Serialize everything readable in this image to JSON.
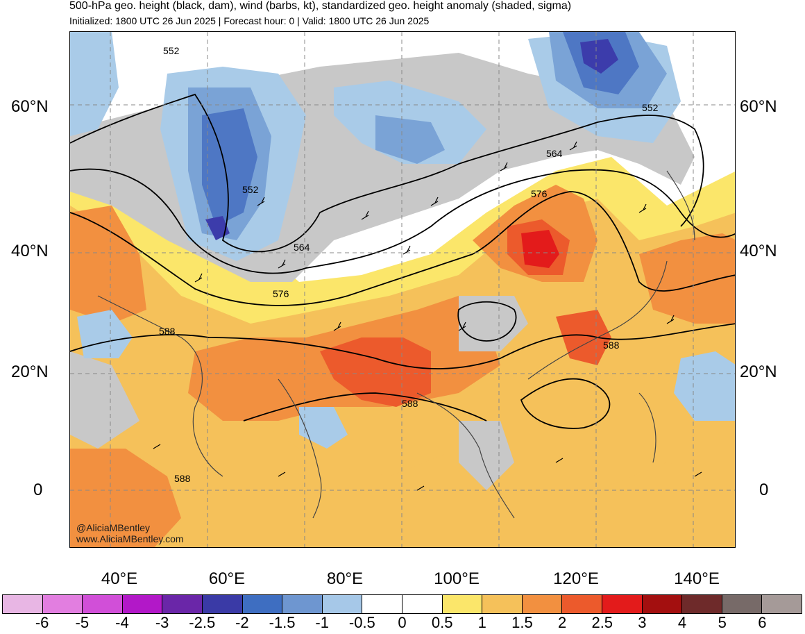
{
  "header": {
    "title": "500-hPa geo. height (black, dam), wind (barbs, kt), standardized geo. height anomaly (shaded, sigma)",
    "subtitle": "Initialized: 1800 UTC 26 Jun 2025 | Forecast hour: 0 | Valid: 1800 UTC 26 Jun 2025"
  },
  "map": {
    "lat_labels": [
      "60°N",
      "40°N",
      "20°N",
      "0"
    ],
    "lon_labels": [
      "40°E",
      "60°E",
      "80°E",
      "100°E",
      "120°E",
      "140°E"
    ],
    "contour_labels": [
      "552",
      "552",
      "552",
      "564",
      "564",
      "576",
      "576",
      "588",
      "588",
      "588",
      "588"
    ],
    "colors": {
      "land_gray": "#c8c8c8",
      "neg_05": "#a9cbe8",
      "neg_1": "#7aa3d6",
      "neg_15": "#4e77c4",
      "neg_2": "#3c3cab",
      "pos_05": "#fbe66a",
      "pos_1": "#f5c15a",
      "pos_15": "#f29040",
      "pos_2": "#ec5a2c",
      "pos_25": "#e31b1b",
      "contour": "#000000",
      "coast": "#444444"
    }
  },
  "credits": {
    "handle": "@AliciaMBentley",
    "website": "www.AliciaMBentley.com"
  },
  "colorbar": {
    "colors": [
      "#e8b6e4",
      "#e27ee0",
      "#d14fd8",
      "#b218c8",
      "#6a26a8",
      "#3a3aa6",
      "#3e6ec1",
      "#6e96d0",
      "#a6c8e8",
      "#ffffff",
      "#ffffff",
      "#fbe66a",
      "#f5c15a",
      "#f29040",
      "#ec5a2c",
      "#e31b1b",
      "#a30f0f",
      "#6e2a2a",
      "#776a68",
      "#a59a98"
    ],
    "labels": [
      "-6",
      "-5",
      "-4",
      "-3",
      "-2.5",
      "-2",
      "-1.5",
      "-1",
      "-0.5",
      "0",
      "0.5",
      "1",
      "1.5",
      "2",
      "2.5",
      "3",
      "4",
      "5",
      "6"
    ]
  }
}
